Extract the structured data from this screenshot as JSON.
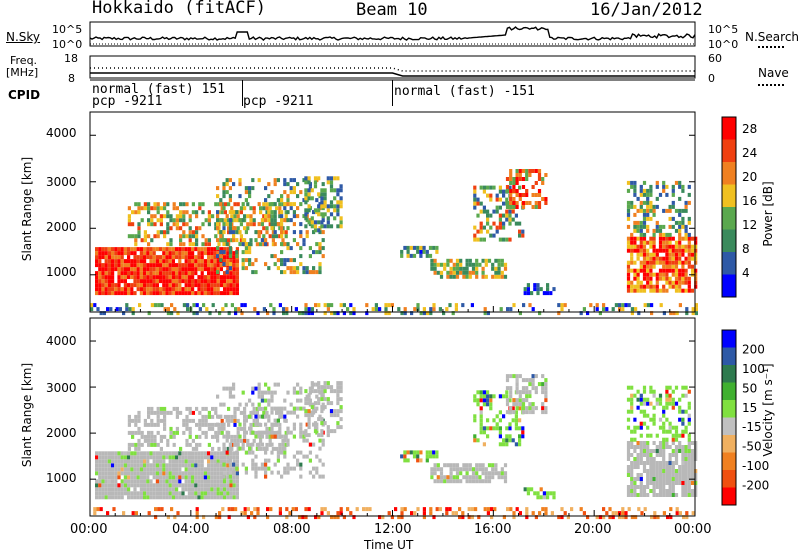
{
  "header": {
    "station": "Hokkaido (fitACF)",
    "beam": "Beam 10",
    "date": "16/Jan/2012"
  },
  "noise_panel": {
    "left_label": "N.Sky",
    "right_label": "N.Search",
    "left_ticks": [
      "10^5",
      "10^0"
    ],
    "right_ticks": [
      "10^5",
      "10^0"
    ]
  },
  "freq_panel": {
    "left_label_1": "Freq.",
    "left_label_2": "[MHz]",
    "right_label": "Nave",
    "left_ticks": [
      "18",
      "8"
    ],
    "right_ticks": [
      "60",
      "0"
    ]
  },
  "cpid": {
    "label": "CPID",
    "entries": [
      {
        "line1": "normal (fast) 151",
        "line2": "pcp -9211"
      },
      {
        "line1": "pcp -9211",
        "line2": ""
      },
      {
        "line1": "normal (fast) -151",
        "line2": ""
      }
    ]
  },
  "colors": {
    "power": [
      "#0000ff",
      "#2e59a6",
      "#3a8a5c",
      "#5aa84e",
      "#f0c020",
      "#f08020",
      "#f04010",
      "#ff0000"
    ],
    "velocity": [
      "#ff0000",
      "#f05010",
      "#f08020",
      "#f0b060",
      "#c0c0c0",
      "#80e040",
      "#40b030",
      "#2e7a4e",
      "#2e59a6",
      "#0000ff"
    ],
    "ground_scatter": "#b8b8b8"
  },
  "chart_data": [
    {
      "type": "heatmap",
      "name": "power",
      "xlabel": "",
      "ylabel": "Slant Range [km]",
      "ylim": [
        200,
        4500
      ],
      "xlim": [
        0,
        24
      ],
      "yticks": [
        "1000",
        "2000",
        "3000",
        "4000"
      ],
      "colorbar_label": "Power [dB]",
      "colorbar_ticks": [
        "4",
        "8",
        "12",
        "16",
        "20",
        "24",
        "28"
      ],
      "colorbar_range": [
        0,
        30
      ]
    },
    {
      "type": "heatmap",
      "name": "velocity",
      "xlabel": "Time UT",
      "ylabel": "Slant Range [km]",
      "ylim": [
        200,
        4500
      ],
      "xlim": [
        0,
        24
      ],
      "yticks": [
        "1000",
        "2000",
        "3000",
        "4000"
      ],
      "xticks": [
        "00:00",
        "04:00",
        "08:00",
        "12:00",
        "16:00",
        "20:00",
        "00:00"
      ],
      "colorbar_label": "Velocity [m s⁻¹]",
      "colorbar_ticks": [
        "200",
        "100",
        "50",
        "15",
        "-15",
        "-50",
        "-100",
        "-200"
      ]
    }
  ]
}
